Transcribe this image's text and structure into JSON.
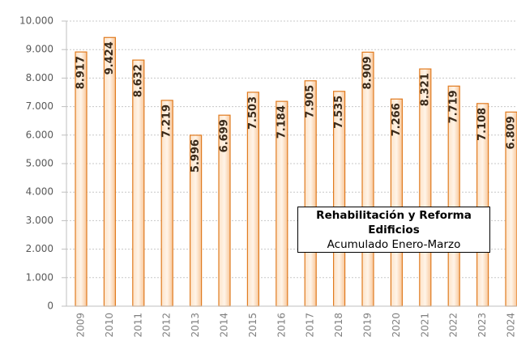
{
  "chart_data": {
    "type": "bar",
    "annotation": {
      "title": "Rehabilitación y Reforma Edificios",
      "subtitle": "Acumulado Enero-Marzo"
    },
    "categories": [
      "2009",
      "2010",
      "2011",
      "2012",
      "2013",
      "2014",
      "2015",
      "2016",
      "2017",
      "2018",
      "2019",
      "2020",
      "2021",
      "2022",
      "2023",
      "2024"
    ],
    "values": [
      8917,
      9424,
      8632,
      7219,
      5996,
      6699,
      7503,
      7184,
      7905,
      7535,
      8909,
      7266,
      8321,
      7719,
      7108,
      6809
    ],
    "value_labels": [
      "8.917",
      "9.424",
      "8.632",
      "7.219",
      "5.996",
      "6.699",
      "7.503",
      "7.184",
      "7.905",
      "7.535",
      "8.909",
      "7.266",
      "8.321",
      "7.719",
      "7.108",
      "6.809"
    ],
    "color": "#e07b20",
    "ylim": [
      0,
      10000
    ],
    "yticks": [
      0,
      {
        "value": 1000,
        "label": "1.000"
      },
      {
        "value": 2000,
        "label": "2.000"
      },
      {
        "value": 3000,
        "label": "3.000"
      },
      {
        "value": 4000,
        "label": "4.000"
      },
      {
        "value": 5000,
        "label": "5.000"
      },
      {
        "value": 6000,
        "label": "6.000"
      },
      {
        "value": 7000,
        "label": "7.000"
      },
      {
        "value": 8000,
        "label": "8.000"
      },
      {
        "value": 9000,
        "label": "9.000"
      },
      {
        "value": 10000,
        "label": "10.000"
      }
    ],
    "grid": true
  }
}
